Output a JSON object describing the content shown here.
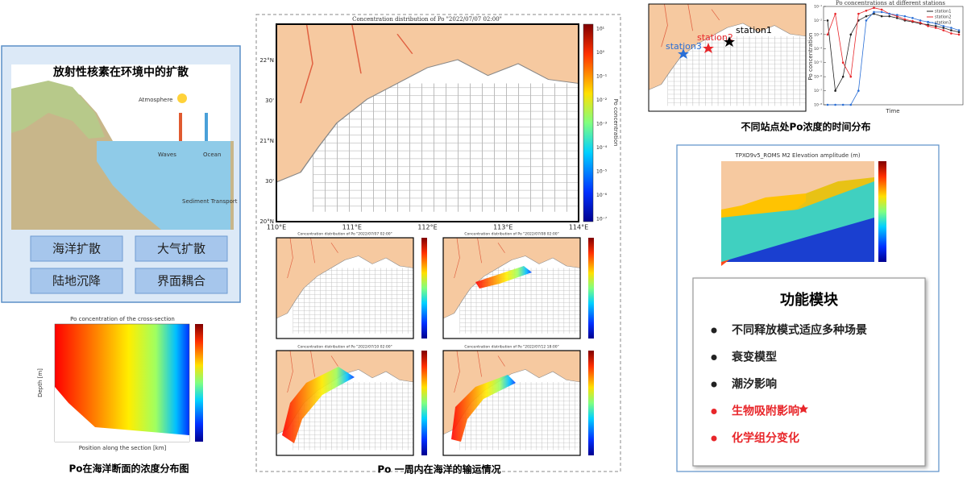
{
  "left_panel": {
    "title": "放射性核素在环境中的扩散",
    "labels": [
      "Atmosphere",
      "Waves",
      "Ocean",
      "Sediment Transport"
    ],
    "buttons": [
      "海洋扩散",
      "大气扩散",
      "陆地沉降",
      "界面耦合"
    ]
  },
  "cross_section": {
    "title": "Po concentration of the cross-section",
    "x_label": "Position along the section [km]",
    "y_label": "Depth [m]",
    "caption": "Po在海洋断面的浓度分布图"
  },
  "main_map": {
    "title": "Concentration distribution of Po \"2022/07/07 02:00\"",
    "x_labels": [
      "110°E",
      "111°E",
      "112°E",
      "113°E",
      "114°E"
    ],
    "y_labels": [
      "22°N",
      "30'",
      "21°N",
      "30'",
      "20°N"
    ],
    "colorbar_label": "Po concentration",
    "colorbar_labels": [
      "10¹",
      "10⁰",
      "10⁻¹",
      "10⁻²",
      "10⁻³",
      "10⁻⁴",
      "10⁻⁵",
      "10⁻⁶",
      "10⁻⁷"
    ]
  },
  "small_maps": [
    {
      "title": "Concentration distribution of Po \"2022/07/07 02:00\""
    },
    {
      "title": "Concentration distribution of Po \"2022/07/08 02:00\""
    },
    {
      "title": "Concentration distribution of Po \"2022/07/10 02:00\""
    },
    {
      "title": "Concentration distribution of Po \"2022/07/12 18:00\""
    }
  ],
  "middle_caption": "Po 一周内在海洋的输运情况",
  "station_map": {
    "stations": [
      "station1",
      "station2",
      "station3"
    ]
  },
  "station_chart": {
    "title": "Po concentrations at different stations",
    "x_label": "Time",
    "y_label": "Po concentration",
    "log_scale": true,
    "ylim": [
      1e-08,
      0.1
    ],
    "yticks": [
      {
        "value": 1e-08,
        "label": "10⁻⁸"
      },
      {
        "value": 1e-07,
        "label": "10⁻⁷"
      },
      {
        "value": 1e-06,
        "label": "10⁻⁶"
      },
      {
        "value": 1e-05,
        "label": "10⁻⁵"
      },
      {
        "value": 0.0001,
        "label": "10⁻⁴"
      },
      {
        "value": 0.001,
        "label": "10⁻³"
      },
      {
        "value": 0.01,
        "label": "10⁻²"
      },
      {
        "value": 0.1,
        "label": "10⁻¹"
      }
    ],
    "series": [
      {
        "name": "station1",
        "color": "#222222",
        "values": [
          0.01,
          1e-07,
          1e-06,
          0.001,
          0.01,
          0.02,
          0.03,
          0.02,
          0.02,
          0.015,
          0.01,
          0.008,
          0.006,
          0.005,
          0.004,
          0.003,
          0.002,
          0.0015
        ]
      },
      {
        "name": "station2",
        "color": "#e8262a",
        "values": [
          0.001,
          0.03,
          1e-05,
          1e-06,
          0.03,
          0.05,
          0.08,
          0.06,
          0.03,
          0.02,
          0.012,
          0.009,
          0.007,
          0.004,
          0.003,
          0.002,
          0.0012,
          0.001
        ]
      },
      {
        "name": "station3",
        "color": "#2a6fd6",
        "values": [
          1e-08,
          1e-08,
          1e-08,
          1e-08,
          1e-07,
          0.01,
          0.04,
          0.04,
          0.03,
          0.025,
          0.02,
          0.015,
          0.01,
          0.008,
          0.006,
          0.004,
          0.003,
          0.002
        ]
      }
    ]
  },
  "station_caption": "不同站点处Po浓度的时间分布",
  "tide_map": {
    "title": "TPXO9v5_ROMS M2 Elevation amplitude (m)"
  },
  "modules": {
    "title": "功能模块",
    "items": [
      "不同释放模式适应多种场景",
      "衰变模型",
      "潮汐影响",
      "生物吸附影响",
      "化学组分变化"
    ]
  }
}
